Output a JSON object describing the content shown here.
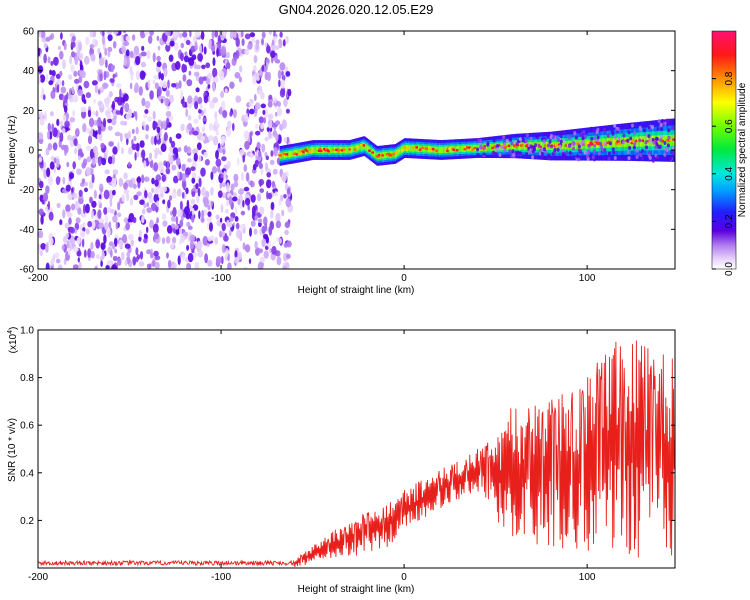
{
  "chart_data": [
    {
      "type": "heatmap",
      "title": "GN04.2026.020.12.05.E29",
      "xlabel": "Height of straight line (km)",
      "ylabel": "Frequency (Hz)",
      "xlim": [
        -200,
        148
      ],
      "ylim": [
        -60,
        60
      ],
      "x_ticks": [
        "-200",
        "-100",
        "0",
        "100"
      ],
      "y_ticks": [
        "60",
        "40",
        "20",
        "0",
        "-20",
        "-40",
        "-60"
      ],
      "noise_region_x": [
        -200,
        -62
      ],
      "signal_region_x": [
        -68,
        148
      ],
      "signal_track": [
        {
          "x": -68,
          "f": -3
        },
        {
          "x": -50,
          "f": 0
        },
        {
          "x": -40,
          "f": 0
        },
        {
          "x": -30,
          "f": 0
        },
        {
          "x": -22,
          "f": 2
        },
        {
          "x": -15,
          "f": -3
        },
        {
          "x": -5,
          "f": -2
        },
        {
          "x": 0,
          "f": 1
        },
        {
          "x": 20,
          "f": 0
        },
        {
          "x": 40,
          "f": 1
        },
        {
          "x": 60,
          "f": 2
        },
        {
          "x": 80,
          "f": 2
        },
        {
          "x": 100,
          "f": 3
        },
        {
          "x": 120,
          "f": 4
        },
        {
          "x": 148,
          "f": 5
        }
      ],
      "colorbar": {
        "label": "Normalized spectral amplitude",
        "ticks": [
          "0.0",
          "0.2",
          "0.4",
          "0.6",
          "0.8"
        ],
        "range": [
          0,
          1
        ]
      },
      "grid": false
    },
    {
      "type": "line",
      "xlabel": "Height of straight line (km)",
      "ylabel": "SNR (10 * v/v)",
      "y_multiplier_label": "(x10",
      "y_multiplier_exp": "4",
      "y_multiplier_close": ")",
      "xlim": [
        -200,
        148
      ],
      "ylim": [
        0,
        1.0
      ],
      "x_ticks": [
        "-200",
        "-100",
        "0",
        "100"
      ],
      "y_ticks": [
        "1.0",
        "0.8",
        "0.6",
        "0.4",
        "0.2"
      ],
      "series": [
        {
          "color": "#e8201c",
          "envelope": [
            {
              "x": -200,
              "lo": 0.0,
              "hi": 0.03
            },
            {
              "x": -60,
              "lo": 0.0,
              "hi": 0.03
            },
            {
              "x": -50,
              "lo": 0.02,
              "hi": 0.1
            },
            {
              "x": -30,
              "lo": 0.04,
              "hi": 0.2
            },
            {
              "x": -10,
              "lo": 0.08,
              "hi": 0.28
            },
            {
              "x": 0,
              "lo": 0.15,
              "hi": 0.33
            },
            {
              "x": 20,
              "lo": 0.25,
              "hi": 0.42
            },
            {
              "x": 40,
              "lo": 0.32,
              "hi": 0.5
            },
            {
              "x": 50,
              "lo": 0.2,
              "hi": 0.55
            },
            {
              "x": 60,
              "lo": 0.12,
              "hi": 0.7
            },
            {
              "x": 80,
              "lo": 0.08,
              "hi": 0.72
            },
            {
              "x": 100,
              "lo": 0.05,
              "hi": 0.8
            },
            {
              "x": 115,
              "lo": 0.03,
              "hi": 1.0
            },
            {
              "x": 148,
              "lo": 0.02,
              "hi": 0.9
            }
          ]
        }
      ],
      "grid": false
    }
  ],
  "colors": {
    "line": "#e8201c",
    "noise_dark": "#6a00d8",
    "noise_light": "#d8b8f8"
  }
}
